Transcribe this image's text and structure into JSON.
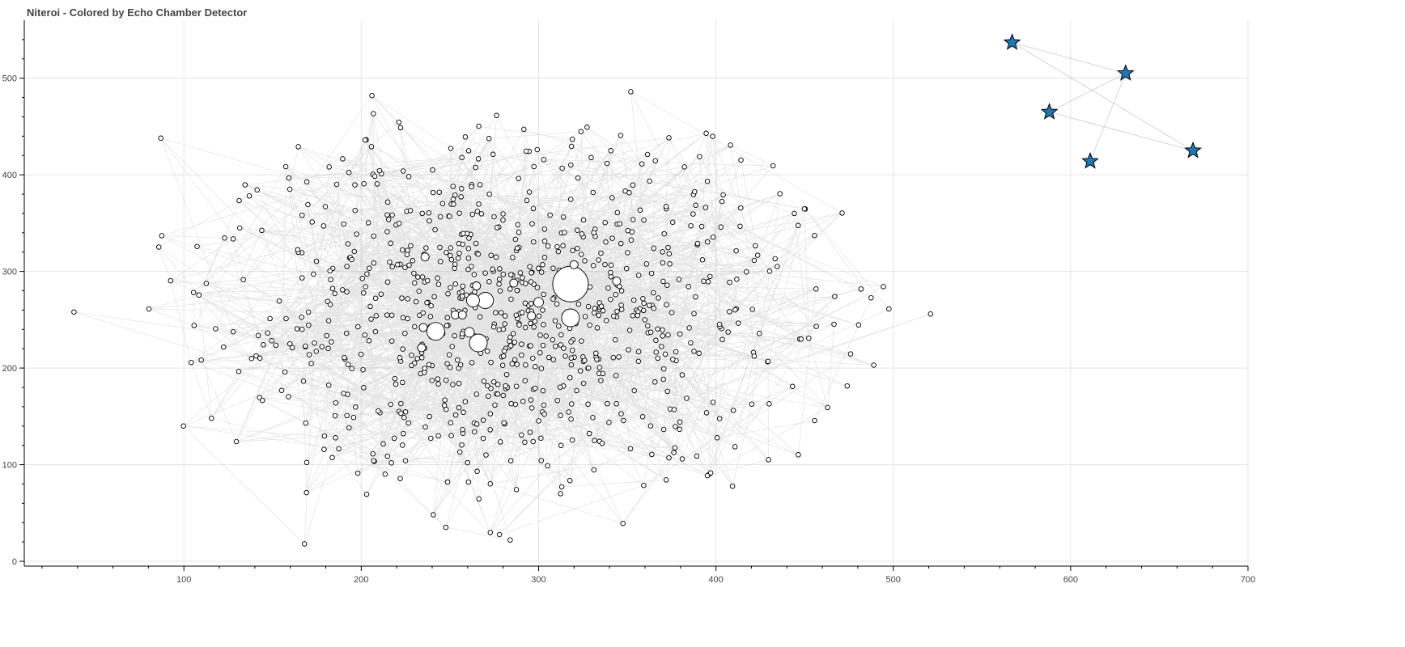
{
  "chart_data": {
    "type": "network",
    "title": "Niteroi - Colored by Echo Chamber Detector",
    "xlim": [
      10,
      700
    ],
    "ylim": [
      -5,
      560
    ],
    "x_ticks": [
      100,
      200,
      300,
      400,
      500,
      600,
      700
    ],
    "y_ticks": [
      0,
      100,
      200,
      300,
      400,
      500
    ],
    "grid": true,
    "main_cluster": {
      "node_count_estimate": 900,
      "x_extent": [
        38,
        520
      ],
      "y_extent": [
        18,
        486
      ],
      "node_fill": "#ffffff",
      "node_stroke": "#000000",
      "edge_color": "#999999"
    },
    "hubs": [
      {
        "x": 318,
        "y": 287,
        "r": 22
      },
      {
        "x": 318,
        "y": 252,
        "r": 11
      },
      {
        "x": 270,
        "y": 270,
        "r": 10
      },
      {
        "x": 242,
        "y": 238,
        "r": 11
      },
      {
        "x": 266,
        "y": 226,
        "r": 11
      },
      {
        "x": 263,
        "y": 270,
        "r": 8
      },
      {
        "x": 300,
        "y": 268,
        "r": 6
      },
      {
        "x": 261,
        "y": 237,
        "r": 6
      },
      {
        "x": 265,
        "y": 285,
        "r": 5
      },
      {
        "x": 286,
        "y": 288,
        "r": 5
      },
      {
        "x": 344,
        "y": 290,
        "r": 5
      },
      {
        "x": 234,
        "y": 221,
        "r": 5
      },
      {
        "x": 235,
        "y": 242,
        "r": 5
      },
      {
        "x": 236,
        "y": 315,
        "r": 5
      },
      {
        "x": 253,
        "y": 255,
        "r": 5
      },
      {
        "x": 296,
        "y": 254,
        "r": 5
      },
      {
        "x": 320,
        "y": 307,
        "r": 5
      },
      {
        "x": 257,
        "y": 255,
        "r": 5
      }
    ],
    "special_nodes": {
      "marker": "star",
      "color": "#1f77b4",
      "points": [
        {
          "x": 567,
          "y": 537
        },
        {
          "x": 631,
          "y": 505
        },
        {
          "x": 588,
          "y": 465
        },
        {
          "x": 669,
          "y": 425
        },
        {
          "x": 611,
          "y": 414
        }
      ],
      "edges": [
        [
          0,
          1
        ],
        [
          0,
          3
        ],
        [
          2,
          1
        ],
        [
          2,
          3
        ],
        [
          4,
          1
        ]
      ]
    },
    "outlier_nodes": [
      {
        "x": 38,
        "y": 258
      },
      {
        "x": 87,
        "y": 438
      },
      {
        "x": 168,
        "y": 18
      },
      {
        "x": 521,
        "y": 256
      },
      {
        "x": 489,
        "y": 203
      },
      {
        "x": 284,
        "y": 22
      },
      {
        "x": 352,
        "y": 486
      },
      {
        "x": 206,
        "y": 482
      }
    ]
  }
}
